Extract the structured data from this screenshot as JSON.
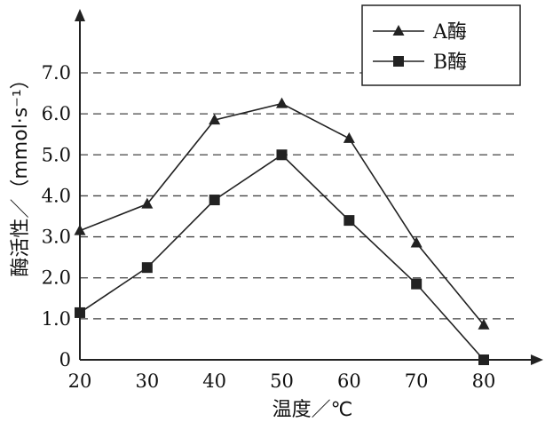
{
  "chart_data": {
    "type": "line",
    "xlabel": "温度／℃",
    "ylabel": "酶活性／（mmol·s⁻¹）",
    "x": [
      20,
      30,
      40,
      50,
      60,
      70,
      80
    ],
    "x_ticks": [
      "20",
      "30",
      "40",
      "50",
      "60",
      "70",
      "80"
    ],
    "y_ticks": [
      "0",
      "1.0",
      "2.0",
      "3.0",
      "4.0",
      "5.0",
      "6.0",
      "7.0"
    ],
    "xlim": [
      20,
      80
    ],
    "ylim": [
      0,
      7
    ],
    "grid": "horizontal dashed",
    "legend_position": "top-right",
    "series": [
      {
        "name": "A酶",
        "marker": "triangle",
        "values": [
          3.15,
          3.8,
          5.85,
          6.25,
          5.4,
          2.85,
          0.85
        ]
      },
      {
        "name": "B酶",
        "marker": "square",
        "values": [
          1.15,
          2.25,
          3.9,
          5.0,
          3.4,
          1.85,
          0.0
        ]
      }
    ],
    "colors": {
      "line": "#222222",
      "grid": "#444444"
    }
  }
}
